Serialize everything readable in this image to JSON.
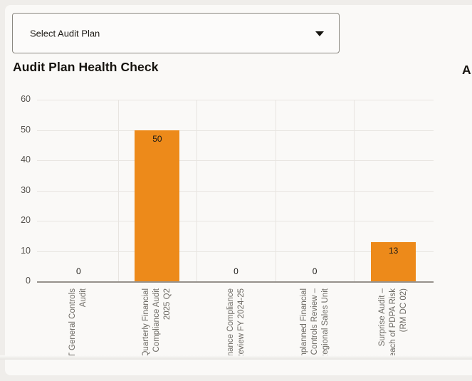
{
  "colors": {
    "page_bg": "#EFEDEA",
    "card_bg": "#FAF9F7",
    "bar": "#ED8A1A",
    "grid": "#E8E5E1",
    "axis": "#96928C",
    "tick_text": "#55524D",
    "xlabel_text": "#6D6A64",
    "value_text": "#1C1A16",
    "title_text": "#16130E",
    "dropdown_border": "#8B8881"
  },
  "dropdown": {
    "label": "Select Audit Plan"
  },
  "section": {
    "title": "Audit Plan Health Check",
    "next_title_fragment": "A"
  },
  "chart_data": {
    "type": "bar",
    "title": "Audit Plan Health Check",
    "categories": [
      "T General Controls\nAudit",
      "Quarterly Financial\nCompliance Audit\n2025 Q2",
      "nance Compliance\nReview FY 2024-25",
      "nplanned Financial\nControls Review –\nRegional Sales Unit",
      "Surprise Audit –\neach of PDPA Risk\n(RM DC 02)"
    ],
    "values": [
      0,
      50,
      0,
      0,
      13
    ],
    "value_labels": [
      "0",
      "50",
      "0",
      "0",
      "13"
    ],
    "xlabel": "",
    "ylabel": "",
    "ylim": [
      0,
      60
    ],
    "yticks": [
      0,
      10,
      20,
      30,
      40,
      50,
      60
    ],
    "grid": true,
    "legend": "none",
    "x_tick_rotation_deg": -90
  }
}
